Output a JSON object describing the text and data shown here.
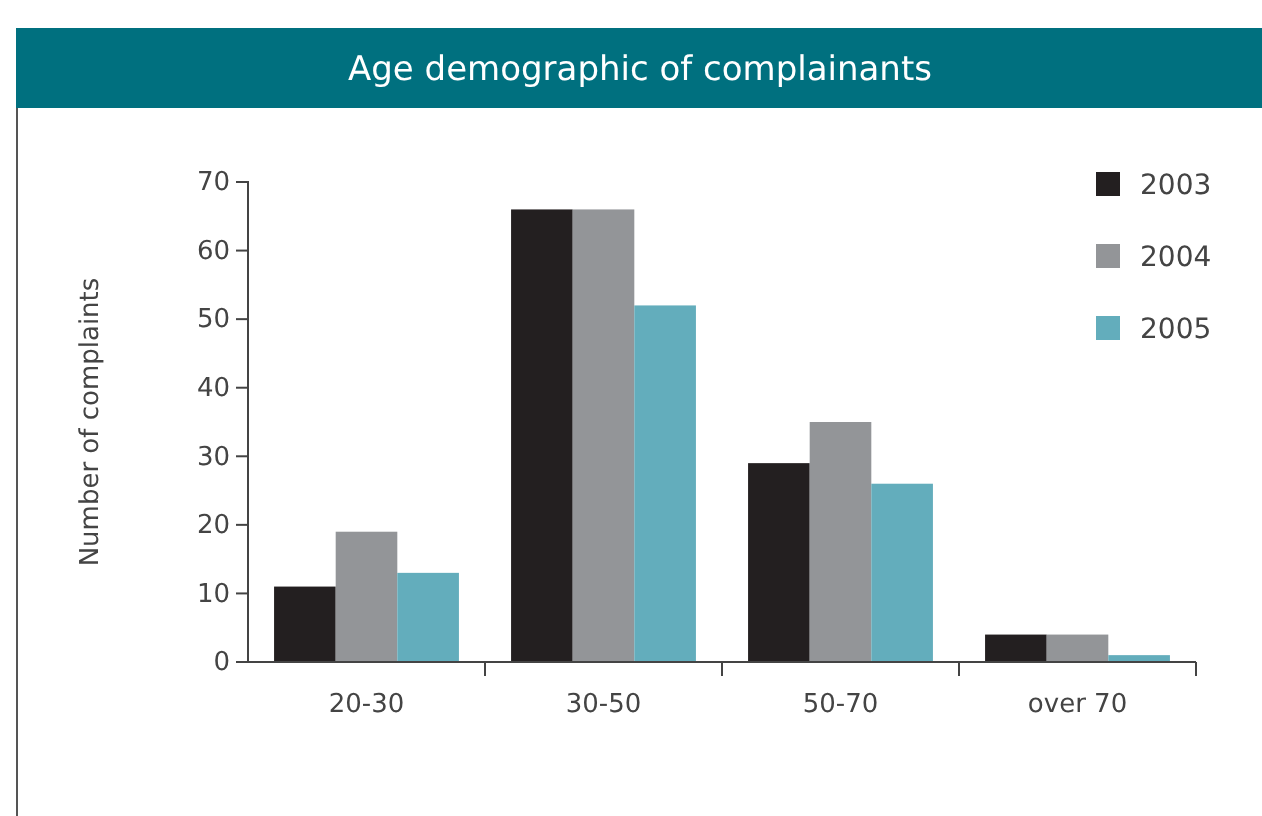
{
  "chart_data": {
    "type": "bar",
    "title": "Age demographic of complainants",
    "ylabel": "Number of complaints",
    "categories": [
      "20-30",
      "30-50",
      "50-70",
      "over 70"
    ],
    "series": [
      {
        "name": "2003",
        "color": "#231f20",
        "values": [
          11,
          66,
          29,
          4
        ]
      },
      {
        "name": "2004",
        "color": "#939598",
        "values": [
          19,
          66,
          35,
          4
        ]
      },
      {
        "name": "2005",
        "color": "#63adbc",
        "values": [
          13,
          52,
          26,
          1
        ]
      }
    ],
    "ylim": [
      0,
      70
    ],
    "yticks": [
      0,
      10,
      20,
      30,
      40,
      50,
      60,
      70
    ],
    "grid": false,
    "legend": "top right"
  }
}
